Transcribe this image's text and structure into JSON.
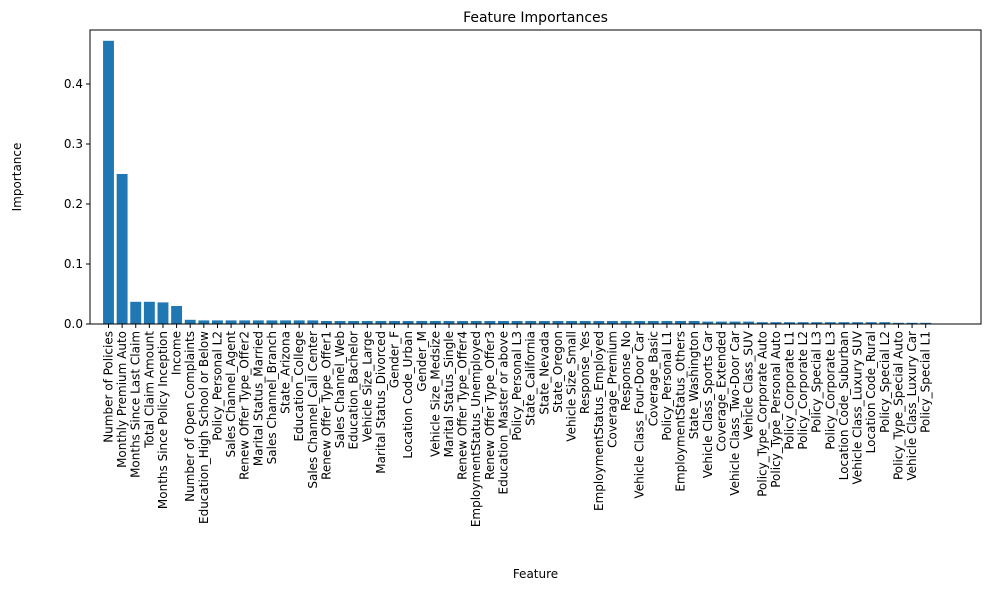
{
  "chart_data": {
    "type": "bar",
    "title": "Feature Importances",
    "xlabel": "Feature",
    "ylabel": "Importance",
    "ylim": [
      0,
      0.49
    ],
    "yticks": [
      "0.0",
      "0.1",
      "0.2",
      "0.3",
      "0.4"
    ],
    "bar_color": "#1f77b4",
    "grid": false,
    "categories": [
      "Number of Policies",
      "Monthly Premium Auto",
      "Months Since Last Claim",
      "Total Claim Amount",
      "Months Since Policy Inception",
      "Income",
      "Number of Open Complaints",
      "Education_High School or Below",
      "Policy_Personal L2",
      "Sales Channel_Agent",
      "Renew Offer Type_Offer2",
      "Marital Status_Married",
      "Sales Channel_Branch",
      "State_Arizona",
      "Education_College",
      "Sales Channel_Call Center",
      "Renew Offer Type_Offer1",
      "Sales Channel_Web",
      "Education_Bachelor",
      "Vehicle Size_Large",
      "Marital Status_Divorced",
      "Gender_F",
      "Location Code_Urban",
      "Gender_M",
      "Vehicle Size_Medsize",
      "Marital Status_Single",
      "Renew Offer Type_Offer4",
      "EmploymentStatus_Unemployed",
      "Renew Offer Type_Offer3",
      "Education_Master or above",
      "Policy_Personal L3",
      "State_California",
      "State_Nevada",
      "State_Oregon",
      "Vehicle Size_Small",
      "Response_Yes",
      "EmploymentStatus_Employed",
      "Coverage_Premium",
      "Response_No",
      "Vehicle Class_Four-Door Car",
      "Coverage_Basic",
      "Policy_Personal L1",
      "EmploymentStatus_Others",
      "State_Washington",
      "Vehicle Class_Sports Car",
      "Coverage_Extended",
      "Vehicle Class_Two-Door Car",
      "Vehicle Class_SUV",
      "Policy_Type_Corporate Auto",
      "Policy_Type_Personal Auto",
      "Policy_Corporate L1",
      "Policy_Corporate L2",
      "Policy_Special L3",
      "Policy_Corporate L3",
      "Location Code_Suburban",
      "Vehicle Class_Luxury SUV",
      "Location Code_Rural",
      "Policy_Special L2",
      "Policy_Type_Special Auto",
      "Vehicle Class_Luxury Car",
      "Policy_Special L1"
    ],
    "values": [
      0.472,
      0.25,
      0.037,
      0.037,
      0.036,
      0.03,
      0.007,
      0.006,
      0.006,
      0.006,
      0.006,
      0.006,
      0.006,
      0.006,
      0.006,
      0.006,
      0.005,
      0.005,
      0.005,
      0.005,
      0.005,
      0.005,
      0.005,
      0.005,
      0.005,
      0.005,
      0.005,
      0.005,
      0.005,
      0.005,
      0.005,
      0.005,
      0.005,
      0.005,
      0.005,
      0.005,
      0.005,
      0.005,
      0.005,
      0.005,
      0.005,
      0.005,
      0.005,
      0.005,
      0.004,
      0.004,
      0.004,
      0.004,
      0.003,
      0.003,
      0.003,
      0.003,
      0.003,
      0.003,
      0.003,
      0.003,
      0.003,
      0.003,
      0.002,
      0.002,
      0.002
    ]
  }
}
